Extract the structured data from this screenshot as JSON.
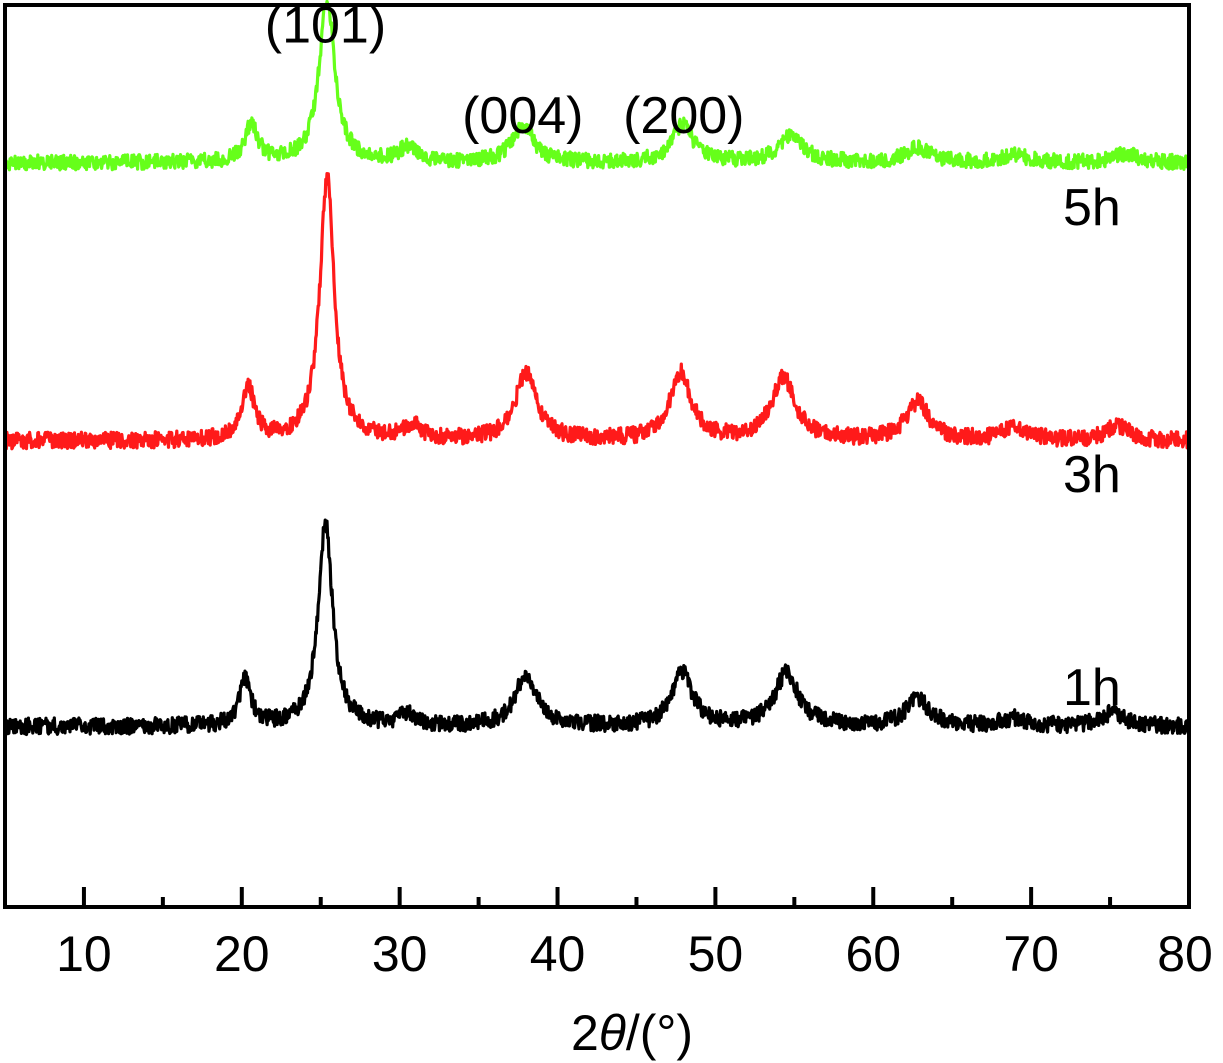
{
  "chart_data": {
    "type": "line",
    "title": "",
    "xlabel": "2θ/(°)",
    "xlabel_parts": {
      "prefix": "2",
      "symbol": "θ",
      "suffix": "/(°)"
    },
    "ylabel": "",
    "xlim": [
      5,
      80
    ],
    "ylim": [
      0,
      6
    ],
    "x_ticks": [
      10,
      20,
      30,
      40,
      50,
      60,
      70,
      80
    ],
    "x_minor_ticks": [
      15,
      25,
      35,
      45,
      55,
      65,
      75
    ],
    "grid": false,
    "legend": "none",
    "peak_annotations": [
      {
        "label": "(101)",
        "x": 25.3,
        "y": 5.75
      },
      {
        "label": "(004)",
        "x": 37.8,
        "y": 5.15
      },
      {
        "label": "(200)",
        "x": 48.0,
        "y": 5.15
      }
    ],
    "series": [
      {
        "name": "1h",
        "label": "1h",
        "color": "#000000",
        "baseline": 1.2,
        "noise": 0.055,
        "peaks": [
          {
            "x": 20.2,
            "height": 0.3,
            "width": 0.45
          },
          {
            "x": 25.3,
            "height": 1.35,
            "width": 0.55
          },
          {
            "x": 30.5,
            "height": 0.08,
            "width": 0.6
          },
          {
            "x": 38.0,
            "height": 0.35,
            "width": 0.8
          },
          {
            "x": 47.9,
            "height": 0.35,
            "width": 0.8
          },
          {
            "x": 54.5,
            "height": 0.35,
            "width": 0.9
          },
          {
            "x": 62.8,
            "height": 0.18,
            "width": 0.9
          },
          {
            "x": 69.0,
            "height": 0.05,
            "width": 1.0
          },
          {
            "x": 75.2,
            "height": 0.09,
            "width": 0.9
          }
        ]
      },
      {
        "name": "3h",
        "label": "3h",
        "color": "#ff1a1a",
        "baseline": 3.1,
        "noise": 0.055,
        "peaks": [
          {
            "x": 20.4,
            "height": 0.35,
            "width": 0.5
          },
          {
            "x": 25.4,
            "height": 1.75,
            "width": 0.55
          },
          {
            "x": 30.8,
            "height": 0.1,
            "width": 0.6
          },
          {
            "x": 38.0,
            "height": 0.45,
            "width": 0.8
          },
          {
            "x": 47.8,
            "height": 0.45,
            "width": 0.8
          },
          {
            "x": 54.3,
            "height": 0.42,
            "width": 0.9
          },
          {
            "x": 62.8,
            "height": 0.25,
            "width": 0.9
          },
          {
            "x": 69.0,
            "height": 0.08,
            "width": 1.0
          },
          {
            "x": 75.5,
            "height": 0.1,
            "width": 0.9
          }
        ]
      },
      {
        "name": "5h",
        "label": "5h",
        "color": "#66ff1a",
        "baseline": 4.95,
        "noise": 0.05,
        "peaks": [
          {
            "x": 20.6,
            "height": 0.25,
            "width": 0.5
          },
          {
            "x": 25.4,
            "height": 1.08,
            "width": 0.6
          },
          {
            "x": 30.5,
            "height": 0.1,
            "width": 0.6
          },
          {
            "x": 37.8,
            "height": 0.25,
            "width": 0.8
          },
          {
            "x": 47.9,
            "height": 0.25,
            "width": 0.8
          },
          {
            "x": 54.8,
            "height": 0.18,
            "width": 0.9
          },
          {
            "x": 62.8,
            "height": 0.1,
            "width": 0.9
          },
          {
            "x": 69.0,
            "height": 0.05,
            "width": 1.0
          },
          {
            "x": 76.0,
            "height": 0.06,
            "width": 0.9
          }
        ]
      }
    ]
  }
}
